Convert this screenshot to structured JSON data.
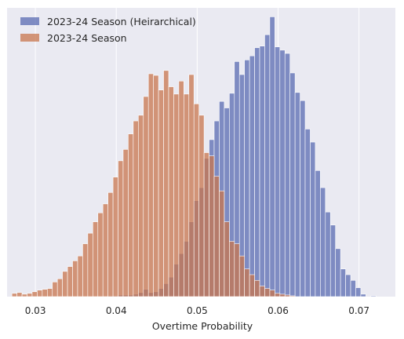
{
  "chart_data": {
    "type": "bar",
    "subtype": "histogram",
    "xlabel": "Overtime Probability",
    "ylabel": "",
    "xlim": [
      0.0265,
      0.0745
    ],
    "ylim": [
      0,
      355
    ],
    "x_ticks": [
      0.03,
      0.04,
      0.05,
      0.06,
      0.07
    ],
    "x_tick_labels": [
      "0.03",
      "0.04",
      "0.05",
      "0.06",
      "0.07"
    ],
    "y_ticks_visible": false,
    "grid": true,
    "legend_position": "top-left",
    "bin_start": 0.0271,
    "bin_width": 0.000625,
    "series": [
      {
        "name": "2023-24 Season (Heirarchical)",
        "color": "#5a6bb2",
        "values": [
          0,
          0,
          0,
          0,
          0,
          0,
          0,
          0,
          0,
          0,
          0,
          0,
          0,
          0,
          0,
          0,
          0,
          0,
          0,
          1,
          1,
          2,
          2,
          2,
          3,
          5,
          9,
          5,
          6,
          10,
          16,
          24,
          40,
          53,
          68,
          92,
          118,
          134,
          170,
          193,
          216,
          240,
          232,
          250,
          289,
          273,
          291,
          296,
          306,
          308,
          322,
          344,
          307,
          303,
          299,
          275,
          251,
          241,
          206,
          190,
          155,
          134,
          104,
          88,
          59,
          34,
          27,
          20,
          11,
          3,
          0,
          1,
          0,
          0,
          0,
          0,
          0,
          0
        ]
      },
      {
        "name": "2023-24 Season",
        "color": "#c8764e",
        "values": [
          4,
          5,
          3,
          4,
          6,
          8,
          9,
          10,
          18,
          22,
          31,
          37,
          44,
          50,
          65,
          78,
          92,
          103,
          114,
          128,
          147,
          167,
          181,
          200,
          216,
          223,
          246,
          274,
          272,
          254,
          278,
          258,
          249,
          265,
          249,
          273,
          237,
          223,
          177,
          173,
          148,
          130,
          92,
          68,
          65,
          50,
          34,
          27,
          20,
          13,
          10,
          8,
          4,
          3,
          2,
          1,
          0,
          0,
          0,
          0,
          0,
          0,
          0,
          0,
          0,
          0,
          0,
          0,
          0,
          0,
          0,
          0,
          0,
          0,
          0,
          0,
          0,
          0
        ]
      }
    ]
  }
}
